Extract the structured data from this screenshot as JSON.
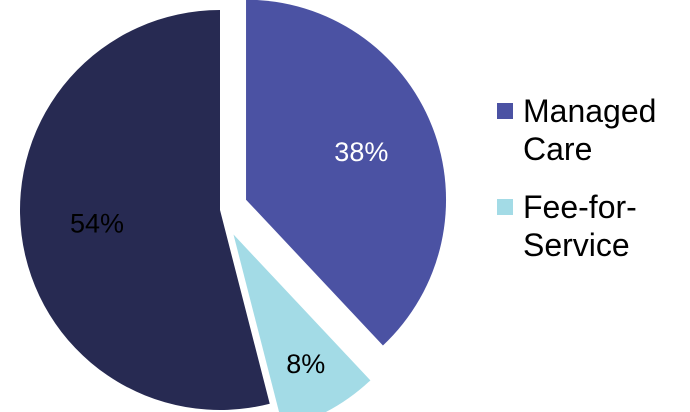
{
  "chart_data": {
    "type": "pie",
    "title": "",
    "slices": [
      {
        "label": "Managed Care",
        "value": 38,
        "display": "38%",
        "color": "#4b52a3",
        "label_color": "#ffffff",
        "exploded": true
      },
      {
        "label": "Fee-for-Service",
        "value": 8,
        "display": "8%",
        "color": "#a3dbe6",
        "label_color": "#000000",
        "exploded": true
      },
      {
        "label": "",
        "value": 54,
        "display": "54%",
        "color": "#272a52",
        "label_color": "#000000",
        "exploded": false
      }
    ],
    "legend": {
      "placement": "right",
      "entries": [
        {
          "label": "Managed Care",
          "color": "#4b52a3"
        },
        {
          "label": "Fee-for-Service",
          "color": "#a3dbe6"
        }
      ]
    }
  }
}
